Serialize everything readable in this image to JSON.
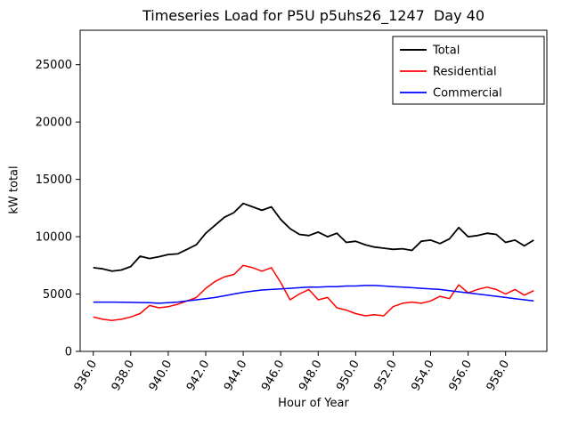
{
  "figure": {
    "title": "Timeseries Load for P5U p5uhs26_1247  Day 40",
    "xlabel": "Hour of Year",
    "ylabel": "kW total"
  },
  "chart_data": {
    "type": "line",
    "title": "Timeseries Load for P5U p5uhs26_1247  Day 40",
    "xlabel": "Hour of Year",
    "ylabel": "kW total",
    "xlim": [
      935.3,
      960.2
    ],
    "ylim": [
      0,
      28000
    ],
    "grid": false,
    "legend_position": "upper right",
    "x_ticks": [
      936,
      938,
      940,
      942,
      944,
      946,
      948,
      950,
      952,
      954,
      956,
      958
    ],
    "x_tick_labels": [
      "936.0",
      "938.0",
      "940.0",
      "942.0",
      "944.0",
      "946.0",
      "948.0",
      "950.0",
      "952.0",
      "954.0",
      "956.0",
      "958.0"
    ],
    "y_ticks": [
      0,
      5000,
      10000,
      15000,
      20000,
      25000
    ],
    "y_tick_labels": [
      "0",
      "5000",
      "10000",
      "15000",
      "20000",
      "25000"
    ],
    "x": [
      936,
      936.5,
      937,
      937.5,
      938,
      938.5,
      939,
      939.5,
      940,
      940.5,
      941,
      941.5,
      942,
      942.5,
      943,
      943.5,
      944,
      944.5,
      945,
      945.5,
      946,
      946.5,
      947,
      947.5,
      948,
      948.5,
      949,
      949.5,
      950,
      950.5,
      951,
      951.5,
      952,
      952.5,
      953,
      953.5,
      954,
      954.5,
      955,
      955.5,
      956,
      956.5,
      957,
      957.5,
      958,
      958.5,
      959,
      959.5
    ],
    "series": [
      {
        "name": "Total",
        "color": "#000000",
        "line_width": 1.8,
        "values": [
          7300,
          7200,
          7000,
          7100,
          7400,
          8300,
          8100,
          8250,
          8450,
          8500,
          8900,
          9300,
          10300,
          11000,
          11700,
          12100,
          12900,
          12600,
          12300,
          12600,
          11500,
          10700,
          10200,
          10100,
          10400,
          10000,
          10300,
          9500,
          9600,
          9300,
          9100,
          9000,
          8900,
          8950,
          8800,
          9600,
          9700,
          9400,
          9800,
          10800,
          10000,
          10100,
          10300,
          10200,
          9500,
          9700,
          9200,
          9700
        ]
      },
      {
        "name": "Residential",
        "color": "#ff0000",
        "line_width": 1.5,
        "values": [
          3000,
          2800,
          2700,
          2800,
          3000,
          3300,
          4000,
          3800,
          3900,
          4100,
          4400,
          4700,
          5500,
          6100,
          6500,
          6700,
          7500,
          7300,
          7000,
          7300,
          6000,
          4500,
          5000,
          5400,
          4500,
          4700,
          3800,
          3600,
          3300,
          3100,
          3200,
          3100,
          3900,
          4200,
          4300,
          4200,
          4400,
          4800,
          4600,
          5800,
          5100,
          5400,
          5600,
          5400,
          5000,
          5400,
          4900,
          5300
        ]
      },
      {
        "name": "Commercial",
        "color": "#0000ff",
        "line_width": 1.5,
        "values": [
          4300,
          4300,
          4300,
          4280,
          4270,
          4260,
          4250,
          4200,
          4250,
          4300,
          4400,
          4500,
          4600,
          4700,
          4850,
          5000,
          5150,
          5250,
          5350,
          5400,
          5450,
          5500,
          5550,
          5600,
          5600,
          5650,
          5650,
          5700,
          5700,
          5750,
          5750,
          5700,
          5650,
          5600,
          5550,
          5500,
          5450,
          5400,
          5300,
          5200,
          5100,
          5000,
          4900,
          4800,
          4700,
          4600,
          4500,
          4400
        ]
      }
    ]
  }
}
